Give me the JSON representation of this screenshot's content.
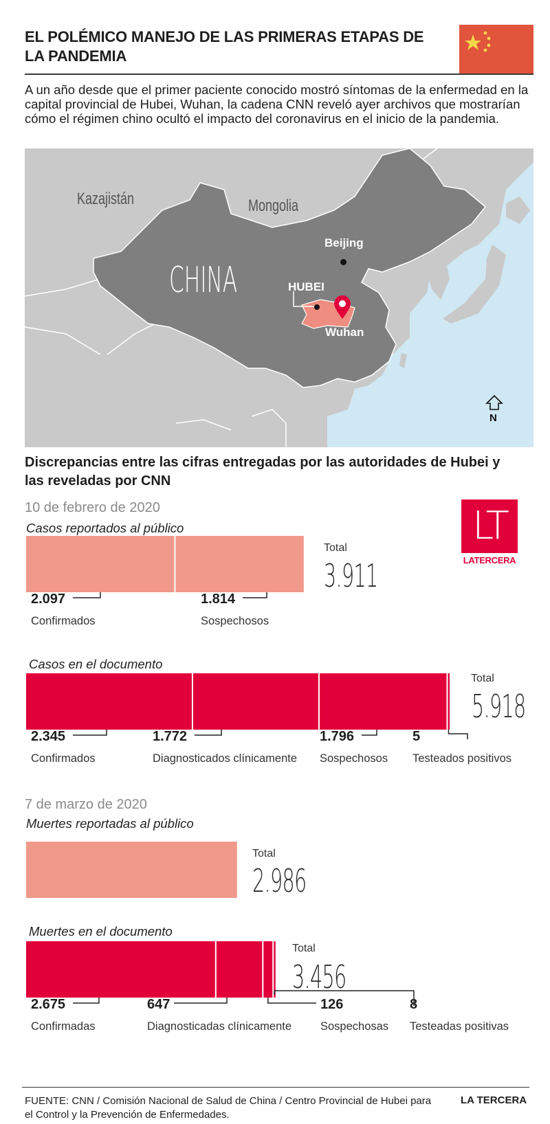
{
  "title": "El polémico manejo de las primeras etapas de la pandemia",
  "intro": "A un año desde que el primer paciente conocido mostró síntomas de la enfermedad en la capital provincial de Hubei, Wuhan, la cadena CNN reveló ayer archivos que mostrarían cómo el régimen chino ocultó el impacto del coronavirus en el inicio de la pandemia.",
  "map": {
    "labels": {
      "kazakhstan": "Kazajistán",
      "mongolia": "Mongolia",
      "china": "CHINA",
      "beijing": "Beijing",
      "hubei": "HUBEI",
      "wuhan": "Wuhan",
      "north": "N"
    },
    "colors": {
      "sea": "#cfe8f3",
      "land": "#c9c9c9",
      "china": "#7f7f7f",
      "hubei": "#ee8d80",
      "pin": "#e2003b"
    }
  },
  "subhead": "Discrepancias entre las cifras entregadas por las autoridades de Hubei y las reveladas por CNN",
  "colors": {
    "public": "#f0998a",
    "document": "#e2003b"
  },
  "total_label": "Total",
  "chart_data": [
    {
      "type": "bar",
      "date": "10 de febrero de 2020",
      "title": "Casos reportados al público",
      "total": "3.911",
      "series": [
        {
          "name": "Confirmados",
          "value": 2097,
          "label": "2.097"
        },
        {
          "name": "Sospechosos",
          "value": 1814,
          "label": "1.814"
        }
      ]
    },
    {
      "type": "bar",
      "title": "Casos en el documento",
      "total": "5.918",
      "series": [
        {
          "name": "Confirmados",
          "value": 2345,
          "label": "2.345"
        },
        {
          "name": "Diagnosticados clínicamente",
          "value": 1772,
          "label": "1.772"
        },
        {
          "name": "Sospechosos",
          "value": 1796,
          "label": "1.796"
        },
        {
          "name": "Testeados positivos",
          "value": 5,
          "label": "5"
        }
      ]
    },
    {
      "type": "bar",
      "date": "7 de marzo de 2020",
      "title": "Muertes reportadas al público",
      "total": "2.986",
      "series": [
        {
          "name": "",
          "value": 2986,
          "label": ""
        }
      ]
    },
    {
      "type": "bar",
      "title": "Muertes en el documento",
      "total": "3.456",
      "series": [
        {
          "name": "Confirmadas",
          "value": 2675,
          "label": "2.675"
        },
        {
          "name": "Diagnosticadas clínicamente",
          "value": 647,
          "label": "647"
        },
        {
          "name": "Sospechosas",
          "value": 126,
          "label": "126"
        },
        {
          "name": "Testeadas positivas",
          "value": 8,
          "label": "8"
        }
      ]
    }
  ],
  "logo": {
    "mark": "LT",
    "word": "LATERCERA"
  },
  "source": "FUENTE: CNN / Comisión Nacional de Salud de China / Centro Provincial de Hubei para el Control y la Prevención de Enfermedades.",
  "brand": "LA TERCERA"
}
